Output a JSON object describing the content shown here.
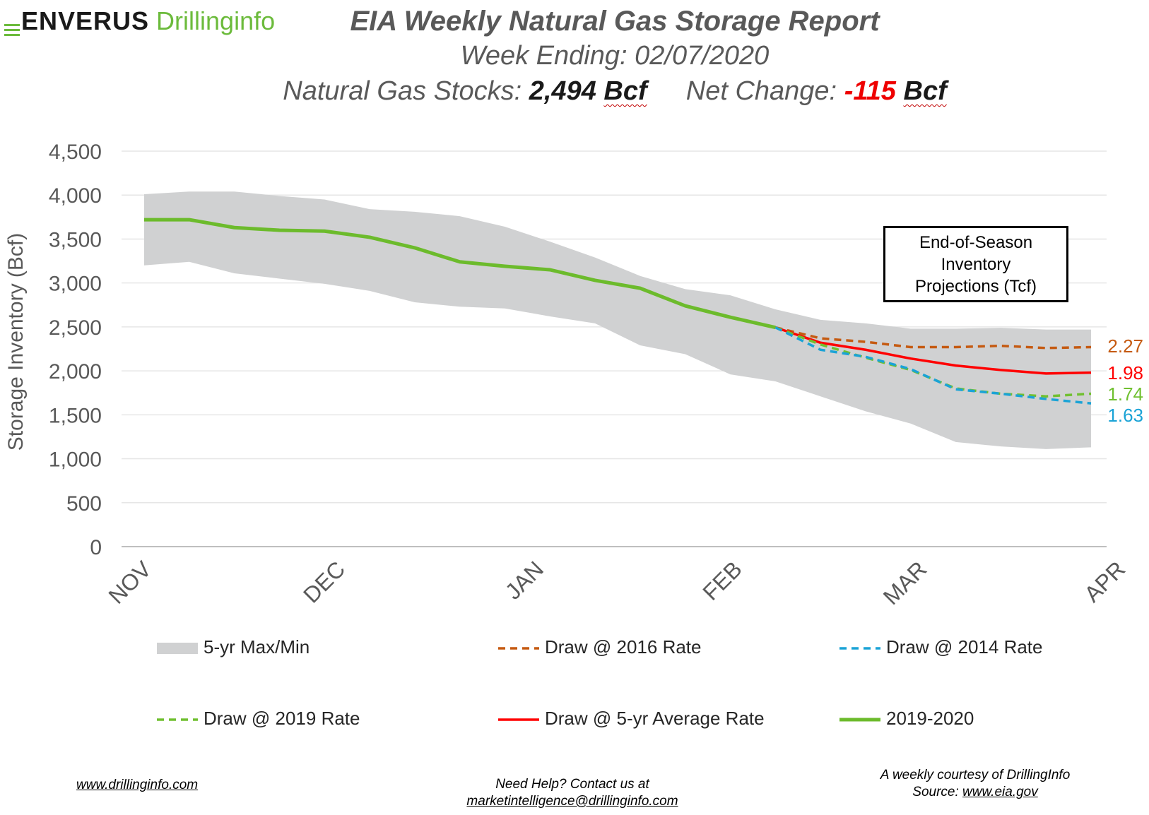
{
  "logo": {
    "brand": "ENVERUS",
    "product": "Drillinginfo"
  },
  "header": {
    "title": "EIA Weekly Natural Gas Storage Report",
    "subtitle": "Week Ending: 02/07/2020",
    "stocks_label": "Natural Gas Stocks:",
    "stocks_value": "2,494",
    "stocks_unit": "Bcf",
    "change_label": "Net Change:",
    "change_value": "-115",
    "change_unit": "Bcf"
  },
  "chart_data": {
    "type": "line",
    "ylabel": "Storage Inventory (Bcf)",
    "xlabel": "",
    "ylim": [
      0,
      4500
    ],
    "yticks": [
      0,
      500,
      1000,
      1500,
      2000,
      2500,
      3000,
      3500,
      4000,
      4500
    ],
    "ytick_labels": [
      "0",
      "500",
      "1,000",
      "1,500",
      "2,000",
      "2,500",
      "3,000",
      "3,500",
      "4,000",
      "4,500"
    ],
    "grid": "horizontal",
    "x_weeks": 22,
    "month_ticks": [
      {
        "label": "NOV",
        "week": 0
      },
      {
        "label": "DEC",
        "week": 4.3
      },
      {
        "label": "JAN",
        "week": 8.7
      },
      {
        "label": "FEB",
        "week": 13.1
      },
      {
        "label": "MAR",
        "week": 17.2
      },
      {
        "label": "APR",
        "week": 21.6
      }
    ],
    "band": {
      "name": "5-yr Max/Min",
      "color": "#d0d1d2",
      "max": [
        4010,
        4040,
        4040,
        3990,
        3950,
        3840,
        3810,
        3760,
        3640,
        3470,
        3290,
        3080,
        2930,
        2860,
        2700,
        2580,
        2540,
        2480,
        2480,
        2490,
        2470,
        2470
      ],
      "min": [
        3200,
        3240,
        3110,
        3050,
        2990,
        2910,
        2780,
        2730,
        2710,
        2620,
        2540,
        2290,
        2190,
        1960,
        1880,
        1710,
        1540,
        1400,
        1190,
        1140,
        1110,
        1130
      ]
    },
    "actual": {
      "name": "2019-2020",
      "color": "#6cbb2c",
      "values": [
        3720,
        3720,
        3630,
        3600,
        3590,
        3520,
        3400,
        3240,
        3190,
        3150,
        3030,
        2940,
        2740,
        2610,
        2494
      ]
    },
    "projections": [
      {
        "name": "Draw @ 2016 Rate",
        "color": "#c55a11",
        "dash": "10,7",
        "start_week": 14,
        "values": [
          2494,
          2370,
          2330,
          2270,
          2270,
          2285,
          2260,
          2270
        ],
        "end_label": "2.27"
      },
      {
        "name": "Draw @ 5-yr Average Rate",
        "color": "#ff0000",
        "dash": "",
        "start_week": 14,
        "values": [
          2494,
          2320,
          2240,
          2140,
          2060,
          2010,
          1970,
          1980
        ],
        "end_label": "1.98"
      },
      {
        "name": "Draw @ 2019 Rate",
        "color": "#70c030",
        "dash": "10,7",
        "start_week": 14,
        "values": [
          2494,
          2300,
          2150,
          2010,
          1800,
          1740,
          1710,
          1740
        ],
        "end_label": "1.74"
      },
      {
        "name": "Draw @ 2014 Rate",
        "color": "#1aa3d6",
        "dash": "10,7",
        "start_week": 14,
        "values": [
          2494,
          2240,
          2160,
          2020,
          1790,
          1740,
          1680,
          1630
        ],
        "end_label": "1.63"
      }
    ],
    "projection_box": [
      "End-of-Season",
      "Inventory",
      "Projections (Tcf)"
    ],
    "legend": [
      {
        "name": "5-yr Max/Min",
        "style": "band",
        "color": "#d0d1d2"
      },
      {
        "name": "Draw @ 2016 Rate",
        "style": "dash",
        "color": "#c55a11"
      },
      {
        "name": "Draw @ 2014 Rate",
        "style": "dash",
        "color": "#1aa3d6"
      },
      {
        "name": "Draw @ 2019 Rate",
        "style": "dash",
        "color": "#70c030"
      },
      {
        "name": "Draw @ 5-yr Average Rate",
        "style": "solid",
        "color": "#ff0000"
      },
      {
        "name": "2019-2020",
        "style": "solid-thick",
        "color": "#6cbb2c"
      }
    ],
    "legend_placement": "bottom"
  },
  "footer": {
    "website": "www.drillinginfo.com",
    "help_text": "Need Help? Contact us at",
    "email": "marketintelligence@drillinginfo.com",
    "courtesy": "A weekly courtesy of DrillingInfo",
    "source_label": "Source:",
    "source_url": "www.eia.gov"
  }
}
